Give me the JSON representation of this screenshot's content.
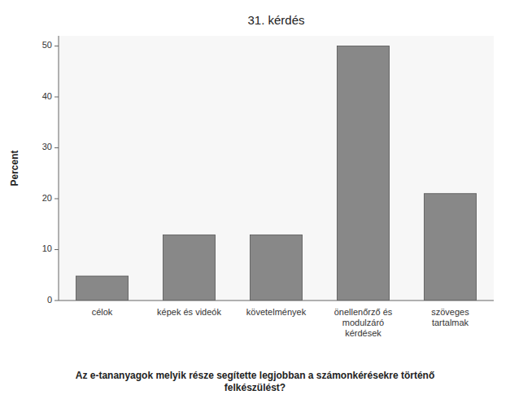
{
  "chart_data": {
    "type": "bar",
    "title": "31. kérdés",
    "xlabel": "Az e-tananyagok melyik része segítette legjobban a számonkérésekre történő\nfelkészülést?",
    "ylabel": "Percent",
    "categories": [
      "célok",
      "képek és videók",
      "követelmények",
      "önellenőrző és\nmodulzáró\nkérdések",
      "szöveges\ntartalmak"
    ],
    "values": [
      4.8,
      12.9,
      12.9,
      50.0,
      21.0
    ],
    "color": "#888888",
    "ylim": [
      0,
      52
    ],
    "yticks": [
      0,
      10,
      20,
      30,
      40,
      50
    ],
    "grid": false
  }
}
